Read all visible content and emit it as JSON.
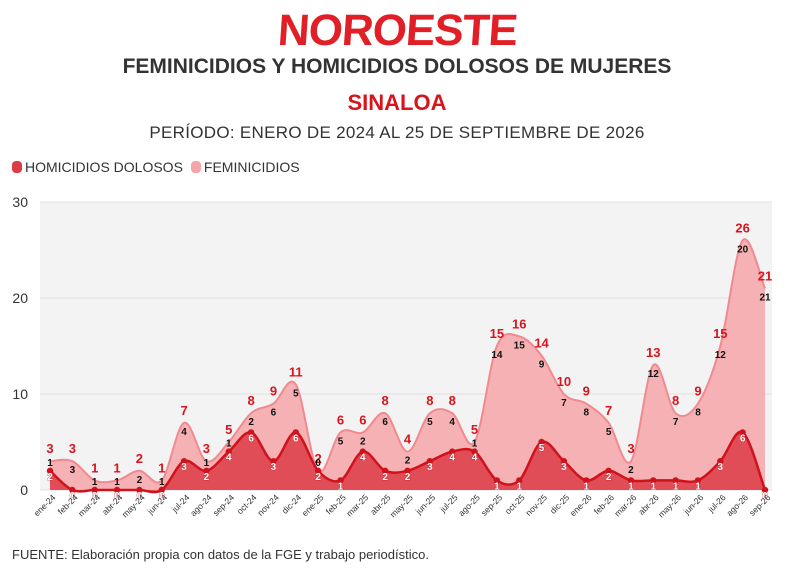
{
  "header": {
    "logo_text": "NOROESTE",
    "title": "FEMINICIDIOS Y HOMICIDIOS DOLOSOS DE MUJERES",
    "subtitle": "SINALOA",
    "period": "PERÍODO: ENERO DE 2024 AL 25 DE SEPTIEMBRE DE 2026"
  },
  "source": "FUENTE: Elaboración propia con datos de la FGE y trabajo periodístico.",
  "colors": {
    "brand": "#e01f26",
    "homicidios": "#dd3c46",
    "feminicidios": "#f6a4a8",
    "plot_bg": "#f3f3f3"
  },
  "chart_data": {
    "type": "area",
    "stacked": true,
    "ylim": [
      0,
      30
    ],
    "yticks": [
      0,
      10,
      20,
      30
    ],
    "grid": true,
    "legend_position": "top-left",
    "categories": [
      "ene-24",
      "feb-24",
      "mar-24",
      "abr-24",
      "may-24",
      "jun-24",
      "jul-24",
      "ago-24",
      "sep-24",
      "oct-24",
      "nov-24",
      "dic-24",
      "ene-25",
      "feb-25",
      "mar-25",
      "abr-25",
      "may-25",
      "jun-25",
      "jul-25",
      "ago-25",
      "sep-25",
      "oct-25",
      "nov-25",
      "dic-25",
      "ene-26",
      "feb-26",
      "mar-26",
      "abr-26",
      "may-26",
      "jun-26",
      "jul-26",
      "ago-26",
      "sep-26"
    ],
    "series": [
      {
        "name": "HOMICIDIOS DOLOSOS",
        "values": [
          2,
          0,
          0,
          0,
          0,
          0,
          3,
          2,
          4,
          6,
          3,
          6,
          2,
          1,
          4,
          2,
          2,
          3,
          4,
          4,
          1,
          1,
          5,
          3,
          1,
          2,
          1,
          1,
          1,
          1,
          3,
          6,
          0
        ]
      },
      {
        "name": "FEMINICIDIOS",
        "values": [
          1,
          3,
          1,
          1,
          2,
          1,
          4,
          1,
          1,
          2,
          6,
          5,
          0,
          5,
          2,
          6,
          2,
          5,
          4,
          1,
          14,
          15,
          9,
          7,
          8,
          5,
          2,
          12,
          7,
          8,
          12,
          20,
          21
        ]
      }
    ],
    "totals": [
      3,
      3,
      1,
      1,
      2,
      1,
      7,
      3,
      5,
      8,
      9,
      11,
      2,
      6,
      6,
      8,
      4,
      8,
      8,
      5,
      15,
      16,
      14,
      10,
      9,
      7,
      3,
      13,
      8,
      9,
      15,
      26,
      21
    ]
  }
}
